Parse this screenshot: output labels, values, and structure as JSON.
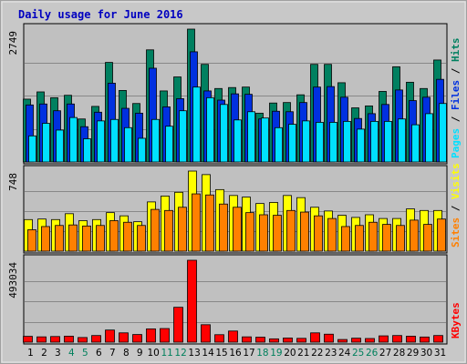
{
  "chart_data": {
    "type": "bar",
    "title": "Daily usage for June 2016",
    "categories": [
      "1",
      "2",
      "3",
      "4",
      "5",
      "6",
      "7",
      "8",
      "9",
      "10",
      "11",
      "12",
      "13",
      "14",
      "15",
      "16",
      "17",
      "18",
      "19",
      "20",
      "21",
      "22",
      "23",
      "24",
      "25",
      "26",
      "27",
      "28",
      "29",
      "30",
      "31"
    ],
    "weekend_days": [
      "4",
      "5",
      "11",
      "12",
      "18",
      "19",
      "25",
      "26"
    ],
    "label_colors": {
      "weekday": "#000000",
      "weekend": "#00805c"
    },
    "panels": [
      {
        "name": "hits-files-pages",
        "ymax": 2749,
        "ymax_label": "2749",
        "ylim": [
          0,
          2749
        ],
        "grid": true,
        "series": [
          {
            "name": "Hits",
            "color": "#008060",
            "values": [
              1300,
              1450,
              1330,
              1380,
              890,
              1150,
              2060,
              1480,
              1210,
              2320,
              1470,
              1760,
              2749,
              2020,
              1520,
              1540,
              1550,
              1010,
              1220,
              1230,
              1390,
              2020,
              2020,
              1640,
              1120,
              1160,
              1460,
              1970,
              1650,
              1520,
              2110
            ]
          },
          {
            "name": "Files",
            "color": "#0030e0",
            "values": [
              1180,
              1200,
              1060,
              1200,
              730,
              1030,
              1630,
              1110,
              1010,
              1940,
              1140,
              1310,
              2280,
              1470,
              1280,
              1410,
              1400,
              890,
              1050,
              1040,
              1230,
              1550,
              1560,
              1340,
              900,
              1000,
              1190,
              1490,
              1270,
              1340,
              1710
            ]
          },
          {
            "name": "Pages",
            "color": "#00e0ff",
            "values": [
              540,
              800,
              660,
              920,
              480,
              850,
              880,
              710,
              490,
              880,
              740,
              1060,
              1550,
              1330,
              1190,
              870,
              1040,
              910,
              710,
              780,
              850,
              820,
              820,
              840,
              680,
              840,
              840,
              890,
              770,
              1000,
              1210
            ]
          }
        ],
        "vertical_label": [
          "Pages",
          " / ",
          "Files",
          " / ",
          "Hits"
        ]
      },
      {
        "name": "visits-sites",
        "ymax": 748,
        "ymax_label": "748",
        "ylim": [
          0,
          748
        ],
        "grid": true,
        "series": [
          {
            "name": "Visits",
            "color": "#ffff00",
            "values": [
              295,
              300,
              295,
              350,
              285,
              295,
              360,
              330,
              275,
              460,
              515,
              550,
              748,
              715,
              575,
              520,
              505,
              445,
              455,
              520,
              500,
              410,
              375,
              335,
              315,
              340,
              305,
              305,
              395,
              380,
              380
            ]
          },
          {
            "name": "Sites",
            "color": "#ff8000",
            "values": [
              200,
              230,
              240,
              245,
              235,
              240,
              285,
              270,
              240,
              390,
              380,
              410,
              535,
              525,
              440,
              410,
              360,
              340,
              335,
              380,
              365,
              330,
              305,
              230,
              240,
              270,
              250,
              240,
              290,
              250,
              300
            ]
          }
        ],
        "vertical_label": [
          "Sites",
          " / ",
          "Visits"
        ]
      },
      {
        "name": "kbytes",
        "ymax": 493034,
        "ymax_label": "493034",
        "ylim": [
          0,
          493034
        ],
        "grid": true,
        "series": [
          {
            "name": "KBytes",
            "color": "#ff0000",
            "values": [
              35000,
              32000,
              34000,
              36000,
              28000,
              40000,
              73000,
              56000,
              46000,
              80000,
              82000,
              210000,
              493034,
              105000,
              45000,
              67000,
              32000,
              30000,
              20000,
              25000,
              23000,
              56000,
              48000,
              16000,
              24000,
              22000,
              38000,
              40000,
              36000,
              31000,
              40000
            ]
          }
        ],
        "vertical_label": [
          "KBytes"
        ]
      }
    ],
    "xlabel": "",
    "legend": "right-vertical"
  }
}
